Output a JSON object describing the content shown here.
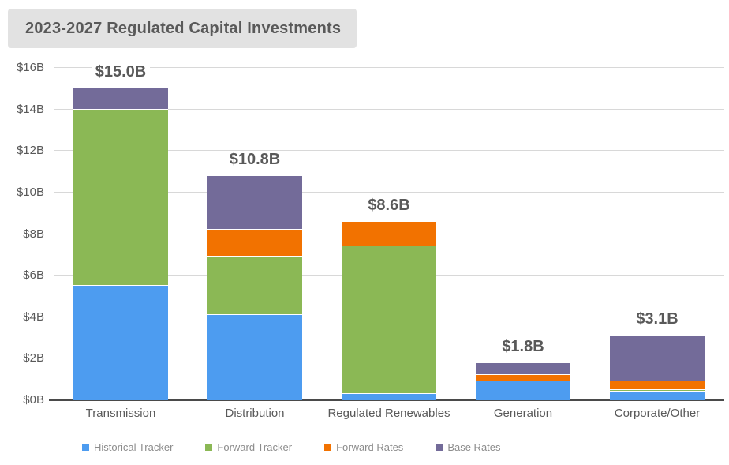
{
  "header": {
    "title": "2023-2027 Regulated Capital Investments"
  },
  "colors": {
    "title_bg": "#E2E2E2",
    "title_text": "#595959",
    "gridline": "#D8D8D8",
    "axis_line": "#4A4A4A",
    "tick_text": "#595959",
    "legend_text": "#8C8C8C",
    "historical_tracker": "#4D9CF0",
    "forward_tracker": "#8BB855",
    "forward_rates": "#F27200",
    "base_rates": "#736B99"
  },
  "chart_data": {
    "type": "bar",
    "stacked": true,
    "title": "2023-2027 Regulated Capital Investments",
    "xlabel": "",
    "ylabel": "",
    "ylim": [
      0,
      16
    ],
    "grid": true,
    "legend_position": "bottom",
    "categories": [
      "Transmission",
      "Distribution",
      "Regulated Renewables",
      "Generation",
      "Corporate/Other"
    ],
    "series": [
      {
        "name": "Historical Tracker",
        "color": "#4D9CF0",
        "values": [
          5.5,
          4.1,
          0.3,
          0.9,
          0.4
        ]
      },
      {
        "name": "Forward Tracker",
        "color": "#8BB855",
        "values": [
          8.5,
          2.8,
          7.1,
          0.0,
          0.1
        ]
      },
      {
        "name": "Forward Rates",
        "color": "#F27200",
        "values": [
          0.0,
          1.3,
          1.2,
          0.3,
          0.4
        ]
      },
      {
        "name": "Base Rates",
        "color": "#736B99",
        "values": [
          1.0,
          2.6,
          0.0,
          0.6,
          2.2
        ]
      }
    ],
    "totals": [
      15.0,
      10.8,
      8.6,
      1.8,
      3.1
    ],
    "total_labels": [
      "$15.0B",
      "$10.8B",
      "$8.6B",
      "$1.8B",
      "$3.1B"
    ],
    "y_tick_values": [
      0,
      2,
      4,
      6,
      8,
      10,
      12,
      14,
      16
    ],
    "y_tick_labels": [
      "$0B",
      "$2B",
      "$4B",
      "$6B",
      "$8B",
      "$10B",
      "$12B",
      "$14B",
      "$16B"
    ]
  }
}
